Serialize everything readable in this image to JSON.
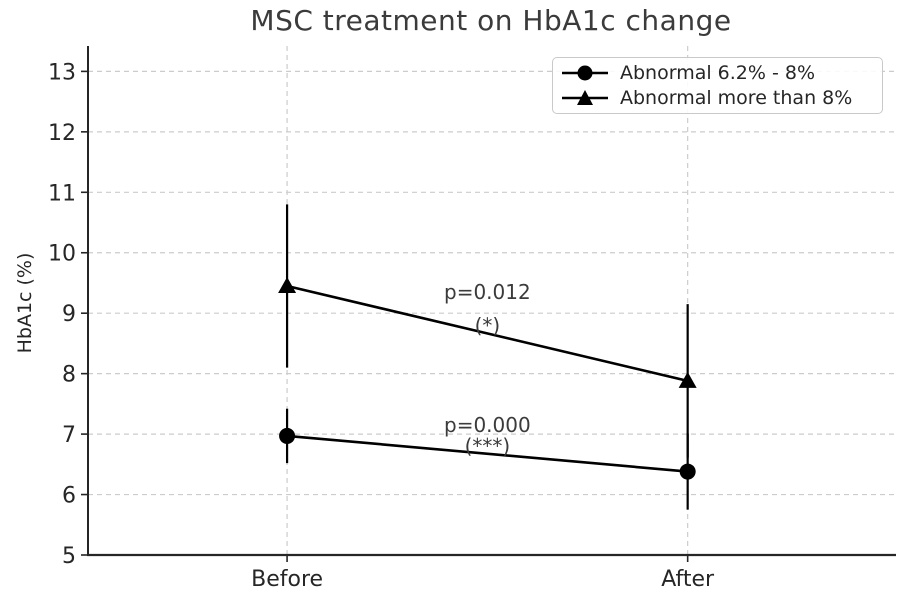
{
  "chart_data": {
    "type": "line",
    "title": "MSC treatment on HbA1c change",
    "xlabel": "",
    "ylabel": "HbA1c (%)",
    "categories": [
      "Before",
      "After"
    ],
    "yticks": [
      5,
      6,
      7,
      8,
      9,
      10,
      11,
      12,
      13
    ],
    "ylim": [
      5,
      13.42
    ],
    "grid": true,
    "legend_position": "upper right",
    "series": [
      {
        "name": "Abnormal 6.2% - 8%",
        "marker": "circle",
        "values": [
          6.97,
          6.38
        ],
        "errors": [
          0.45,
          0.63
        ]
      },
      {
        "name": "Abnormal more than 8%",
        "marker": "triangle",
        "values": [
          9.45,
          7.88
        ],
        "errors": [
          1.35,
          1.27
        ]
      }
    ],
    "annotations": [
      {
        "text": "p=0.012",
        "sub": "(*)",
        "y": 9.35,
        "sub_y": 8.8
      },
      {
        "text": "p=0.000",
        "sub": "(***)",
        "y": 7.15,
        "sub_y": 6.8
      }
    ],
    "colors": {
      "line": "#000000",
      "grid": "#cccccc",
      "spine": "#262626",
      "text": "#3b3b3b"
    }
  }
}
